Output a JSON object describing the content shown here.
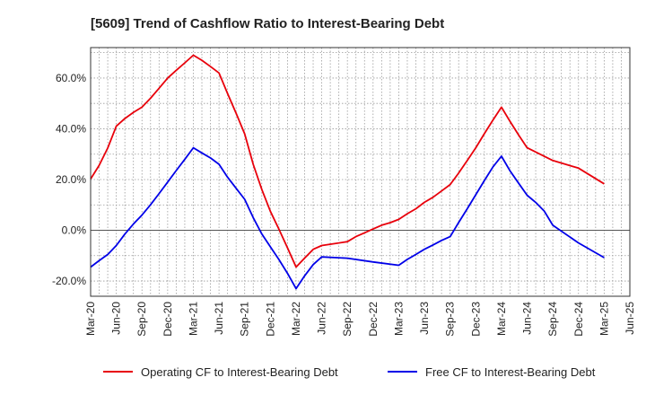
{
  "chart_data": {
    "type": "line",
    "title": "[5609]  Trend of Cashflow Ratio to Interest-Bearing Debt",
    "xlabel": "",
    "ylabel": "",
    "x_tick_labels": [
      "Mar-20",
      "Jun-20",
      "Sep-20",
      "Dec-20",
      "Mar-21",
      "Jun-21",
      "Sep-21",
      "Dec-21",
      "Mar-22",
      "Jun-22",
      "Sep-22",
      "Dec-22",
      "Mar-23",
      "Jun-23",
      "Sep-23",
      "Dec-23",
      "Mar-24",
      "Jun-24",
      "Sep-24",
      "Dec-24",
      "Mar-25",
      "Jun-25"
    ],
    "y_ticks": [
      -20,
      0,
      20,
      40,
      60
    ],
    "y_tick_labels": [
      "-20.0%",
      "0.0%",
      "20.0%",
      "40.0%",
      "60.0%"
    ],
    "ylim": [
      -26,
      72
    ],
    "grid": true,
    "legend_position": "bottom",
    "series": [
      {
        "name": "Operating CF to Interest-Bearing Debt",
        "color": "#e8000b",
        "points": [
          [
            0,
            20.2
          ],
          [
            0.33,
            25.5
          ],
          [
            0.67,
            32.5
          ],
          [
            1,
            41
          ],
          [
            1.33,
            44
          ],
          [
            1.67,
            46.5
          ],
          [
            2,
            48.5
          ],
          [
            2.33,
            52
          ],
          [
            2.67,
            56
          ],
          [
            3,
            60
          ],
          [
            3.33,
            63
          ],
          [
            3.67,
            66
          ],
          [
            4,
            69
          ],
          [
            4.33,
            67
          ],
          [
            4.67,
            64.5
          ],
          [
            5,
            62
          ],
          [
            5.33,
            54
          ],
          [
            5.67,
            46
          ],
          [
            6,
            38
          ],
          [
            6.33,
            26
          ],
          [
            6.67,
            16
          ],
          [
            7,
            7.5
          ],
          [
            7.33,
            0.5
          ],
          [
            7.67,
            -7
          ],
          [
            8,
            -14.5
          ],
          [
            8.33,
            -11
          ],
          [
            8.67,
            -7.5
          ],
          [
            9,
            -6
          ],
          [
            10,
            -4.5
          ],
          [
            10.33,
            -2.5
          ],
          [
            10.67,
            -1
          ],
          [
            11,
            0.5
          ],
          [
            11.33,
            2
          ],
          [
            11.67,
            3
          ],
          [
            12,
            4.3
          ],
          [
            12.33,
            6.5
          ],
          [
            12.67,
            8.5
          ],
          [
            13,
            11
          ],
          [
            13.33,
            13
          ],
          [
            13.67,
            15.5
          ],
          [
            14,
            18
          ],
          [
            14.33,
            22.5
          ],
          [
            14.67,
            27.5
          ],
          [
            15,
            32.5
          ],
          [
            15.33,
            38
          ],
          [
            15.67,
            43.5
          ],
          [
            16,
            48.5
          ],
          [
            16.33,
            43
          ],
          [
            16.67,
            37.5
          ],
          [
            17,
            32.5
          ],
          [
            18,
            27.5
          ],
          [
            19,
            24.5
          ],
          [
            20,
            18.3
          ]
        ]
      },
      {
        "name": "Free CF to Interest-Bearing Debt",
        "color": "#0000e8",
        "points": [
          [
            0,
            -14.5
          ],
          [
            0.33,
            -12
          ],
          [
            0.67,
            -9.5
          ],
          [
            1,
            -6
          ],
          [
            1.33,
            -1.5
          ],
          [
            1.67,
            2.5
          ],
          [
            2,
            6
          ],
          [
            2.33,
            10
          ],
          [
            2.67,
            14.5
          ],
          [
            3,
            19
          ],
          [
            3.33,
            23.5
          ],
          [
            3.67,
            28
          ],
          [
            4,
            32.5
          ],
          [
            4.33,
            30.5
          ],
          [
            4.67,
            28.5
          ],
          [
            5,
            26
          ],
          [
            5.33,
            21
          ],
          [
            5.67,
            16.5
          ],
          [
            6,
            12.2
          ],
          [
            6.33,
            5
          ],
          [
            6.67,
            -1.5
          ],
          [
            7,
            -6.5
          ],
          [
            7.33,
            -11.5
          ],
          [
            7.67,
            -17
          ],
          [
            8,
            -23
          ],
          [
            8.33,
            -18
          ],
          [
            8.67,
            -13.5
          ],
          [
            9,
            -10.5
          ],
          [
            10,
            -11
          ],
          [
            11,
            -12.5
          ],
          [
            12,
            -13.8
          ],
          [
            12.33,
            -11.5
          ],
          [
            12.67,
            -9.5
          ],
          [
            13,
            -7.5
          ],
          [
            13.33,
            -5.8
          ],
          [
            13.67,
            -4
          ],
          [
            14,
            -2.5
          ],
          [
            14.33,
            3
          ],
          [
            14.67,
            8.5
          ],
          [
            15,
            14
          ],
          [
            15.33,
            19.5
          ],
          [
            15.67,
            25
          ],
          [
            16,
            29.2
          ],
          [
            16.33,
            23.5
          ],
          [
            16.67,
            18.5
          ],
          [
            17,
            13.8
          ],
          [
            17.33,
            11
          ],
          [
            17.67,
            7.5
          ],
          [
            18,
            2
          ],
          [
            19,
            -5
          ],
          [
            20,
            -10.8
          ]
        ]
      }
    ]
  }
}
